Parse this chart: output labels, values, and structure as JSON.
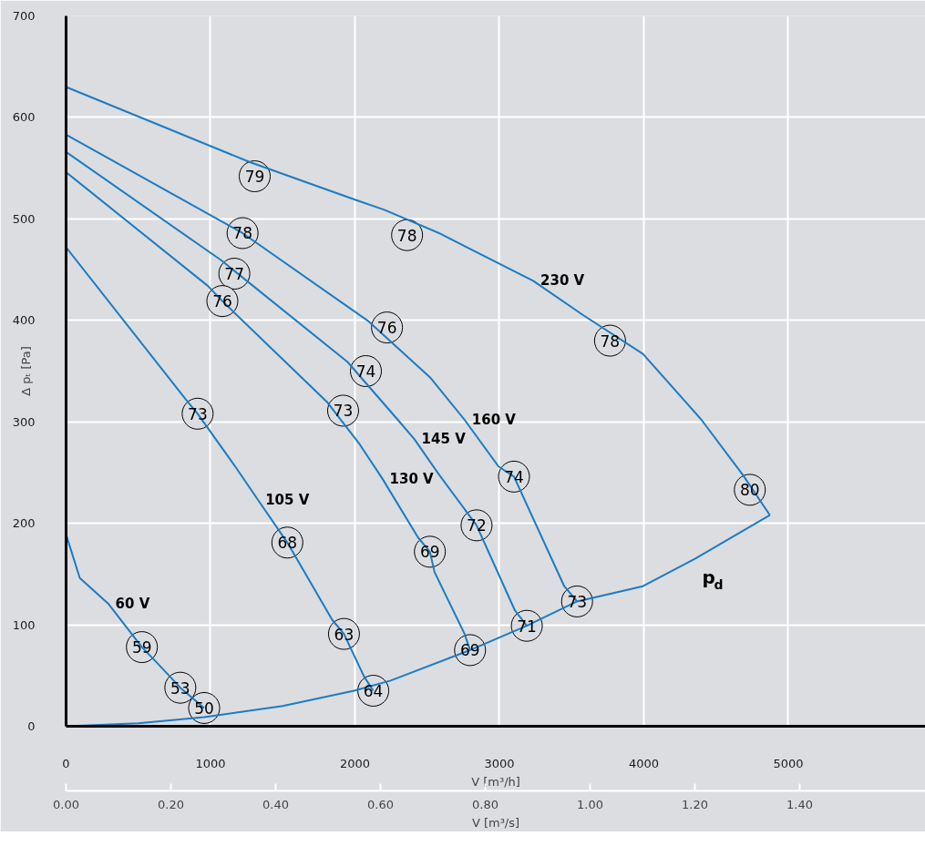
{
  "chart_data": {
    "type": "line",
    "xlabel": "V [m³/h]",
    "x2label": "V [m³/s]",
    "ylabel": "Δ pₜ [Pa]",
    "xlim": [
      0,
      5950
    ],
    "xticks": [
      0,
      1000,
      2000,
      3000,
      4000,
      5000
    ],
    "x2lim": [
      0,
      1.64
    ],
    "x2ticks": [
      {
        "value": 0,
        "label": "0.00"
      },
      {
        "value": 0.2,
        "label": "0.20"
      },
      {
        "value": 0.4,
        "label": "0.40"
      },
      {
        "value": 0.6,
        "label": "0.60"
      },
      {
        "value": 0.8,
        "label": "0.80"
      },
      {
        "value": 1.0,
        "label": "1.00"
      },
      {
        "value": 1.2,
        "label": "1.20"
      },
      {
        "value": 1.4,
        "label": "1.40"
      }
    ],
    "ylim": [
      0,
      700
    ],
    "yticks": [
      0,
      100,
      200,
      300,
      400,
      500,
      600,
      700
    ],
    "grid": true,
    "marker": "none",
    "line_style": "solid",
    "series": [
      {
        "name": "230 V",
        "color": "#1b7bc4",
        "x": [
          0,
          1272,
          2000,
          2203,
          2582,
          3234,
          3582,
          3994,
          4399,
          4684,
          4873
        ],
        "values": [
          630,
          556,
          519,
          509,
          486,
          439,
          405,
          367,
          302,
          248,
          208
        ]
      },
      {
        "name": "160 V",
        "color": "#1b7bc4",
        "x": [
          0,
          1108,
          1222,
          2095,
          2519,
          2759,
          2994,
          3101,
          3449,
          3538
        ],
        "values": [
          583,
          495,
          486,
          399,
          344,
          302,
          256,
          246,
          138,
          123
        ]
      },
      {
        "name": "145 V",
        "color": "#1b7bc4",
        "x": [
          0,
          1076,
          1949,
          2297,
          2411,
          2582,
          2842,
          3108,
          3190
        ],
        "values": [
          566,
          459,
          359,
          302,
          283,
          248,
          198,
          114,
          99
        ]
      },
      {
        "name": "130 V",
        "color": "#1b7bc4",
        "x": [
          0,
          981,
          1082,
          1804,
          2032,
          2190,
          2437,
          2519,
          2551,
          2759,
          2797
        ],
        "values": [
          546,
          434,
          419,
          320,
          278,
          244,
          186,
          172,
          152,
          91,
          75
        ]
      },
      {
        "name": "105 V",
        "color": "#1b7bc4",
        "x": [
          0,
          829,
          911,
          1171,
          1329,
          1532,
          1842,
          1924,
          2063,
          2127
        ],
        "values": [
          472,
          322,
          308,
          256,
          223,
          181,
          105,
          91,
          49,
          35
        ]
      },
      {
        "name": "60 V",
        "color": "#1b7bc4",
        "x": [
          0,
          95,
          291,
          525,
          633,
          791,
          956
        ],
        "values": [
          189,
          146,
          121,
          78,
          62,
          38,
          18
        ]
      },
      {
        "name": "p$_{d}$",
        "color": "#1b7bc4",
        "x": [
          0,
          500,
          956,
          1500,
          1994,
          2247,
          2797,
          3190,
          3538,
          3994,
          4354,
          4873
        ],
        "values": [
          0,
          3,
          9,
          20,
          35,
          45,
          75,
          99,
          123,
          138,
          165,
          208
        ]
      }
    ],
    "annotations": [
      {
        "text": "79",
        "x": 1306,
        "y": 542
      },
      {
        "text": "78",
        "x": 1222,
        "y": 486
      },
      {
        "text": "78",
        "x": 2361,
        "y": 484
      },
      {
        "text": "78",
        "x": 3766,
        "y": 380
      },
      {
        "text": "80",
        "x": 4734,
        "y": 233
      },
      {
        "text": "77",
        "x": 1165,
        "y": 446
      },
      {
        "text": "76",
        "x": 1082,
        "y": 419
      },
      {
        "text": "76",
        "x": 2222,
        "y": 393
      },
      {
        "text": "74",
        "x": 2076,
        "y": 350
      },
      {
        "text": "74",
        "x": 3101,
        "y": 246
      },
      {
        "text": "73",
        "x": 911,
        "y": 308
      },
      {
        "text": "73",
        "x": 1918,
        "y": 311
      },
      {
        "text": "72",
        "x": 2842,
        "y": 198
      },
      {
        "text": "69",
        "x": 2519,
        "y": 172
      },
      {
        "text": "68",
        "x": 1532,
        "y": 181
      },
      {
        "text": "73",
        "x": 3538,
        "y": 123
      },
      {
        "text": "71",
        "x": 3190,
        "y": 99
      },
      {
        "text": "69",
        "x": 2797,
        "y": 75
      },
      {
        "text": "63",
        "x": 1924,
        "y": 91
      },
      {
        "text": "64",
        "x": 2127,
        "y": 35
      },
      {
        "text": "59",
        "x": 525,
        "y": 78
      },
      {
        "text": "53",
        "x": 791,
        "y": 38
      },
      {
        "text": "50",
        "x": 956,
        "y": 18
      }
    ]
  }
}
